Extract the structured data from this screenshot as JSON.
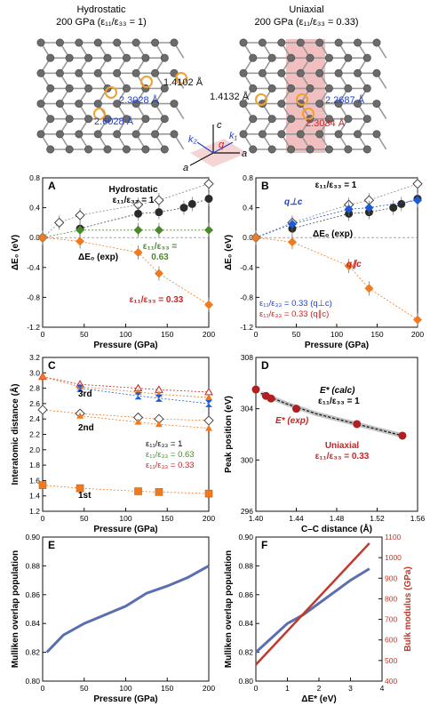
{
  "structures": {
    "left": {
      "title": "Hydrostatic",
      "subtitle": "200 GPa (ε₁₁/ε₃₃ = 1)",
      "bond_a": "1.4102 Å",
      "bond_b": "2.3028 Å",
      "bond_c": "2.6028 Å"
    },
    "right": {
      "title": "Uniaxial",
      "subtitle": "200 GPa (ε₁₁/ε₃₃ = 0.33)",
      "bond_a": "1.4132 Å",
      "bond_b": "2.2687 Å",
      "bond_c": "2.3034 Å"
    },
    "axes_labels": {
      "c": "c",
      "a": "a",
      "k1": "k₁",
      "k2": "k₂",
      "q": "q"
    }
  },
  "colors": {
    "black": "#222222",
    "gray": "#888888",
    "green": "#4a8a2a",
    "orange": "#f07a20",
    "red": "#cc2222",
    "blue": "#1f5ad6",
    "navy": "#5a6fb0",
    "crimson": "#c0392b",
    "pink": "#e08a8a"
  },
  "chart_data": [
    {
      "panel": "A",
      "type": "scatter",
      "xlabel": "Pressure (GPa)",
      "ylabel": "ΔE₀ (eV)",
      "xlim": [
        0,
        200
      ],
      "ylim": [
        -1.2,
        0.8
      ],
      "xticks": [
        0,
        50,
        100,
        150,
        200
      ],
      "yticks": [
        -1.2,
        -0.8,
        -0.4,
        0.0,
        0.4,
        0.8
      ],
      "annotations": [
        "Hydrostatic",
        "ε₁₁/ε₃₃ = 1",
        "ΔE₀ (exp)",
        "ε₁₁/ε₃₃ =",
        "0.63",
        "ε₁₁/ε₃₃ = 0.33"
      ],
      "series": [
        {
          "marker": "open-diamond",
          "x": [
            0,
            20,
            45,
            115,
            140,
            200
          ],
          "y": [
            0,
            0.2,
            0.3,
            0.44,
            0.5,
            0.72
          ]
        },
        {
          "marker": "dark-circle",
          "x": [
            45,
            115,
            140,
            170,
            180,
            200
          ],
          "y": [
            0.12,
            0.32,
            0.34,
            0.4,
            0.45,
            0.52
          ]
        },
        {
          "marker": "green-diamond",
          "x": [
            0,
            45,
            115,
            140,
            200
          ],
          "y": [
            0,
            0.1,
            0.1,
            0.1,
            0.1
          ]
        },
        {
          "marker": "orange-diamond",
          "x": [
            0,
            45,
            115,
            140,
            200
          ],
          "y": [
            0,
            -0.05,
            -0.2,
            -0.48,
            -0.9
          ]
        }
      ]
    },
    {
      "panel": "B",
      "type": "scatter",
      "xlabel": "Pressure (GPa)",
      "ylabel": "ΔE₀ (eV)",
      "xlim": [
        0,
        200
      ],
      "ylim": [
        -1.2,
        0.8
      ],
      "xticks": [
        0,
        50,
        100,
        150,
        200
      ],
      "yticks": [
        -1.2,
        -0.8,
        -0.4,
        0.0,
        0.4,
        0.8
      ],
      "annotations": [
        "ε₁₁/ε₃₃ = 1",
        "q⊥c",
        "ΔE₀ (exp)",
        "q∥c",
        "ε₁₁/ε₃₃ = 0.33 (q⊥c)",
        "ε₁₁/ε₃₃ = 0.33 (q∥c)"
      ],
      "series": [
        {
          "marker": "open-diamond",
          "x": [
            0,
            45,
            115,
            140,
            200
          ],
          "y": [
            0,
            0.2,
            0.44,
            0.5,
            0.72
          ]
        },
        {
          "marker": "dark-circle",
          "x": [
            45,
            115,
            140,
            170,
            180,
            200
          ],
          "y": [
            0.12,
            0.32,
            0.34,
            0.4,
            0.45,
            0.52
          ]
        },
        {
          "marker": "blue-diamond",
          "x": [
            0,
            45,
            115,
            140,
            200
          ],
          "y": [
            0,
            0.18,
            0.38,
            0.4,
            0.5
          ]
        },
        {
          "marker": "orange-diamond",
          "x": [
            0,
            45,
            115,
            140,
            200
          ],
          "y": [
            0,
            -0.06,
            -0.38,
            -0.68,
            -1.1
          ]
        }
      ]
    },
    {
      "panel": "C",
      "type": "scatter",
      "xlabel": "Pressure (GPa)",
      "ylabel": "Interatomic distance (Å)",
      "xlim": [
        0,
        200
      ],
      "ylim": [
        1.2,
        3.2
      ],
      "xticks": [
        0,
        50,
        100,
        150,
        200
      ],
      "yticks": [
        1.2,
        1.4,
        1.6,
        1.8,
        2.0,
        2.2,
        2.4,
        2.6,
        2.8,
        3.0,
        3.2
      ],
      "annotations": [
        "3rd",
        "2nd",
        "1st",
        "ε₁₁/ε₃₃ = 1",
        "ε₁₁/ε₃₃ = 0.63",
        "ε₁₁/ε₃₃ = 0.33"
      ],
      "series": [
        {
          "name": "3rd",
          "marker": "open-triangle",
          "x": [
            0,
            45,
            115,
            140,
            200
          ],
          "y": [
            2.95,
            2.85,
            2.8,
            2.78,
            2.75
          ]
        },
        {
          "name": "3rd",
          "marker": "orange-triangle",
          "x": [
            0,
            45,
            115,
            140,
            200
          ],
          "y": [
            2.95,
            2.82,
            2.75,
            2.72,
            2.68
          ]
        },
        {
          "name": "3rd",
          "marker": "blue-x",
          "x": [
            45,
            115,
            140,
            200
          ],
          "y": [
            2.8,
            2.7,
            2.67,
            2.6
          ]
        },
        {
          "name": "2nd",
          "marker": "open-diamond",
          "x": [
            0,
            45,
            115,
            140,
            200
          ],
          "y": [
            2.52,
            2.47,
            2.42,
            2.4,
            2.38
          ]
        },
        {
          "name": "2nd",
          "marker": "orange-triangle",
          "x": [
            45,
            115,
            140,
            200
          ],
          "y": [
            2.44,
            2.36,
            2.33,
            2.28
          ]
        },
        {
          "name": "1st",
          "marker": "orange-square",
          "x": [
            0,
            45,
            115,
            140,
            200
          ],
          "y": [
            1.54,
            1.5,
            1.46,
            1.45,
            1.43
          ]
        }
      ]
    },
    {
      "panel": "D",
      "type": "line",
      "xlabel": "C–C distance (Å)",
      "ylabel": "Peak position (eV)",
      "xlim": [
        1.4,
        1.56
      ],
      "ylim": [
        296,
        308
      ],
      "xticks": [
        1.4,
        1.44,
        1.48,
        1.52,
        1.56
      ],
      "yticks": [
        296,
        300,
        304,
        308
      ],
      "annotations": [
        "E* (calc)",
        "ε₁₁/ε₃₃ = 1",
        "E* (exp)",
        "Uniaxial",
        "ε₁₁/ε₃₃ = 0.33"
      ],
      "series": [
        {
          "marker": "line",
          "x": [
            1.405,
            1.43,
            1.46,
            1.5,
            1.545
          ],
          "y": [
            305.2,
            304.4,
            303.6,
            302.8,
            301.9
          ]
        },
        {
          "marker": "red-circle",
          "x": [
            1.4,
            1.41,
            1.415,
            1.44,
            1.5,
            1.545
          ],
          "y": [
            305.5,
            305.0,
            304.8,
            304.0,
            302.8,
            301.9
          ]
        }
      ]
    },
    {
      "panel": "E",
      "type": "line",
      "xlabel": "Pressure (GPa)",
      "ylabel": "Mulliken overlap population",
      "xlim": [
        0,
        200
      ],
      "ylim": [
        0.8,
        0.9
      ],
      "xticks": [
        0,
        50,
        100,
        150,
        200
      ],
      "yticks": [
        0.8,
        0.82,
        0.84,
        0.86,
        0.88,
        0.9
      ],
      "series": [
        {
          "x": [
            5,
            25,
            50,
            75,
            100,
            125,
            150,
            175,
            200
          ],
          "y": [
            0.82,
            0.832,
            0.84,
            0.846,
            0.852,
            0.861,
            0.866,
            0.872,
            0.88
          ]
        }
      ]
    },
    {
      "panel": "F",
      "type": "line",
      "xlabel": "ΔE* (eV)",
      "ylabel": "Mulliken overlap population",
      "ylabel_right": "Bulk modulus (GPa)",
      "xlim": [
        0,
        4
      ],
      "ylim": [
        0.8,
        0.9
      ],
      "ylim_right": [
        400,
        1100
      ],
      "xticks": [
        0,
        1,
        2,
        3,
        4
      ],
      "yticks": [
        0.8,
        0.82,
        0.84,
        0.86,
        0.88,
        0.9
      ],
      "yticks_right": [
        400,
        500,
        600,
        700,
        800,
        900,
        1000,
        1100
      ],
      "series": [
        {
          "axis": "left",
          "x": [
            0,
            0.5,
            1,
            1.5,
            2,
            2.5,
            3,
            3.6
          ],
          "y": [
            0.82,
            0.83,
            0.84,
            0.846,
            0.854,
            0.862,
            0.87,
            0.878
          ]
        },
        {
          "axis": "right",
          "x": [
            0,
            3.6
          ],
          "y": [
            480,
            1070
          ]
        }
      ]
    }
  ]
}
